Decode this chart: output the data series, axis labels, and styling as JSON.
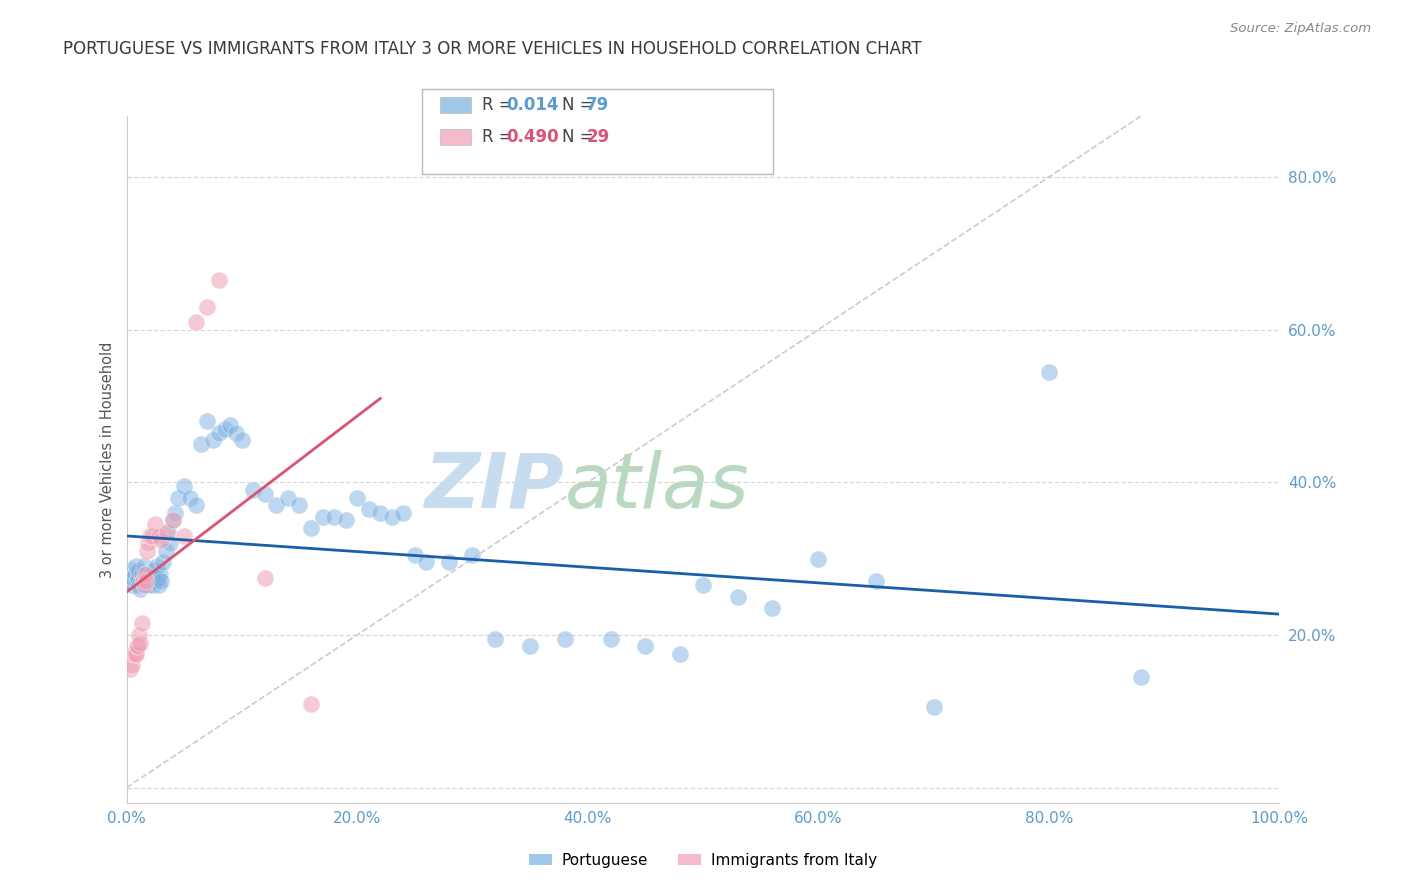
{
  "title": "PORTUGUESE VS IMMIGRANTS FROM ITALY 3 OR MORE VEHICLES IN HOUSEHOLD CORRELATION CHART",
  "source": "Source: ZipAtlas.com",
  "ylabel": "3 or more Vehicles in Household",
  "watermark_zip": "ZIP",
  "watermark_atlas": "atlas",
  "xlim": [
    0.0,
    1.0
  ],
  "ylim": [
    -0.02,
    0.88
  ],
  "xticks": [
    0.0,
    0.2,
    0.4,
    0.6,
    0.8,
    1.0
  ],
  "xtick_labels": [
    "0.0%",
    "20.0%",
    "40.0%",
    "60.0%",
    "80.0%",
    "100.0%"
  ],
  "right_ytick_labels": [
    "20.0%",
    "40.0%",
    "60.0%",
    "80.0%"
  ],
  "right_yticks": [
    0.2,
    0.4,
    0.6,
    0.8
  ],
  "blue_R": "0.014",
  "blue_N": "79",
  "pink_R": "0.490",
  "pink_N": "29",
  "blue_color": "#7ab0e0",
  "pink_color": "#f0a0b4",
  "blue_line_color": "#1a5fa8",
  "pink_line_color": "#e05070",
  "diagonal_color": "#cccccc",
  "background_color": "#ffffff",
  "grid_color": "#d8d8d8",
  "title_color": "#3a3a3a",
  "right_axis_color": "#5b9bd5",
  "source_color": "#888888",
  "blue_label": "Portuguese",
  "pink_label": "Immigrants from Italy",
  "blue_points_x": [
    0.003,
    0.004,
    0.005,
    0.006,
    0.007,
    0.008,
    0.009,
    0.01,
    0.01,
    0.011,
    0.012,
    0.013,
    0.014,
    0.015,
    0.016,
    0.017,
    0.018,
    0.019,
    0.02,
    0.021,
    0.022,
    0.023,
    0.024,
    0.025,
    0.026,
    0.027,
    0.028,
    0.029,
    0.03,
    0.032,
    0.034,
    0.036,
    0.038,
    0.04,
    0.042,
    0.045,
    0.05,
    0.055,
    0.06,
    0.065,
    0.07,
    0.075,
    0.08,
    0.085,
    0.09,
    0.095,
    0.1,
    0.11,
    0.12,
    0.13,
    0.14,
    0.15,
    0.16,
    0.17,
    0.18,
    0.19,
    0.2,
    0.21,
    0.22,
    0.23,
    0.24,
    0.25,
    0.26,
    0.28,
    0.3,
    0.32,
    0.35,
    0.38,
    0.42,
    0.45,
    0.48,
    0.5,
    0.53,
    0.56,
    0.6,
    0.65,
    0.7,
    0.8,
    0.88
  ],
  "blue_points_y": [
    0.27,
    0.285,
    0.265,
    0.275,
    0.28,
    0.29,
    0.27,
    0.275,
    0.285,
    0.265,
    0.26,
    0.28,
    0.27,
    0.29,
    0.265,
    0.275,
    0.28,
    0.265,
    0.27,
    0.28,
    0.275,
    0.265,
    0.285,
    0.27,
    0.29,
    0.275,
    0.265,
    0.28,
    0.27,
    0.295,
    0.31,
    0.335,
    0.32,
    0.35,
    0.36,
    0.38,
    0.395,
    0.38,
    0.37,
    0.45,
    0.48,
    0.455,
    0.465,
    0.47,
    0.475,
    0.465,
    0.455,
    0.39,
    0.385,
    0.37,
    0.38,
    0.37,
    0.34,
    0.355,
    0.355,
    0.35,
    0.38,
    0.365,
    0.36,
    0.355,
    0.36,
    0.305,
    0.295,
    0.295,
    0.305,
    0.195,
    0.185,
    0.195,
    0.195,
    0.185,
    0.175,
    0.265,
    0.25,
    0.235,
    0.3,
    0.27,
    0.105,
    0.545,
    0.145
  ],
  "pink_points_x": [
    0.003,
    0.005,
    0.006,
    0.007,
    0.008,
    0.009,
    0.01,
    0.011,
    0.012,
    0.013,
    0.014,
    0.015,
    0.016,
    0.017,
    0.018,
    0.019,
    0.02,
    0.022,
    0.025,
    0.028,
    0.03,
    0.035,
    0.04,
    0.05,
    0.06,
    0.07,
    0.08,
    0.12,
    0.16
  ],
  "pink_points_y": [
    0.155,
    0.16,
    0.175,
    0.175,
    0.175,
    0.185,
    0.185,
    0.2,
    0.19,
    0.215,
    0.27,
    0.265,
    0.28,
    0.27,
    0.31,
    0.32,
    0.33,
    0.33,
    0.345,
    0.33,
    0.325,
    0.335,
    0.35,
    0.33,
    0.61,
    0.63,
    0.665,
    0.275,
    0.11
  ]
}
